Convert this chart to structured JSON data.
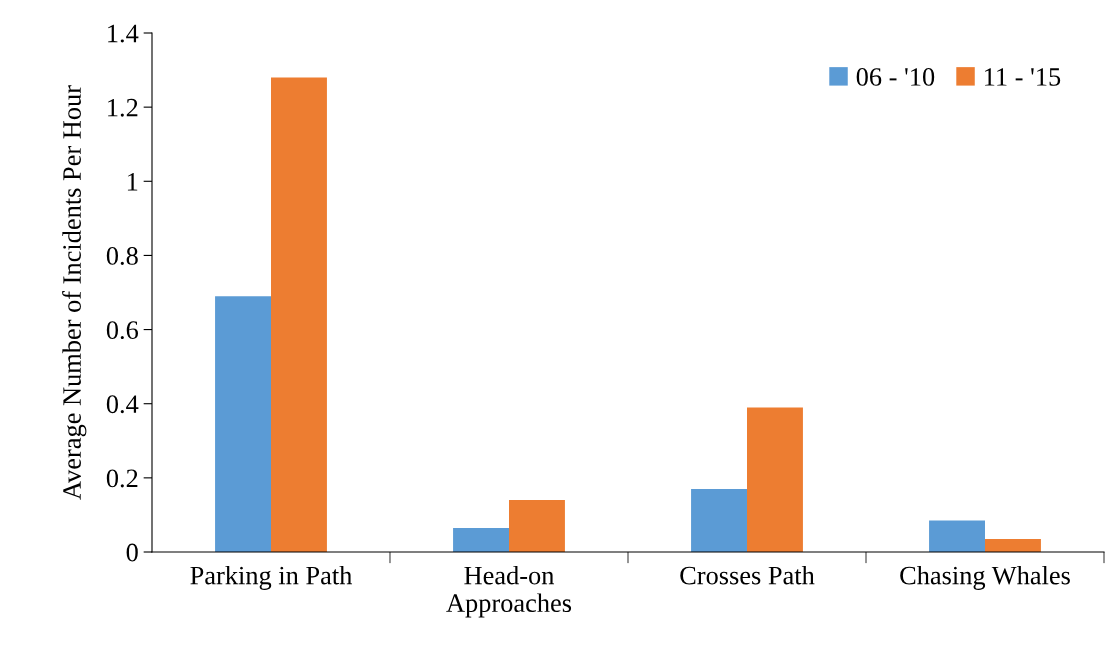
{
  "chart_data": {
    "type": "bar",
    "ylabel": "Average Number of Incidents Per Hour",
    "categories": [
      "Parking in Path",
      "Head-on\nApproaches",
      "Crosses Path",
      "Chasing Whales"
    ],
    "series": [
      {
        "name": "06 - '10",
        "color": "#5b9bd5",
        "values": [
          0.69,
          0.065,
          0.17,
          0.085
        ]
      },
      {
        "name": "11 - '15",
        "color": "#ed7d31",
        "values": [
          1.28,
          0.14,
          0.39,
          0.035
        ]
      }
    ],
    "ylim": [
      0,
      1.4
    ],
    "yticks": [
      0,
      0.2,
      0.4,
      0.6,
      0.8,
      1,
      1.2,
      1.4
    ],
    "grid": false,
    "legend": "top right"
  }
}
